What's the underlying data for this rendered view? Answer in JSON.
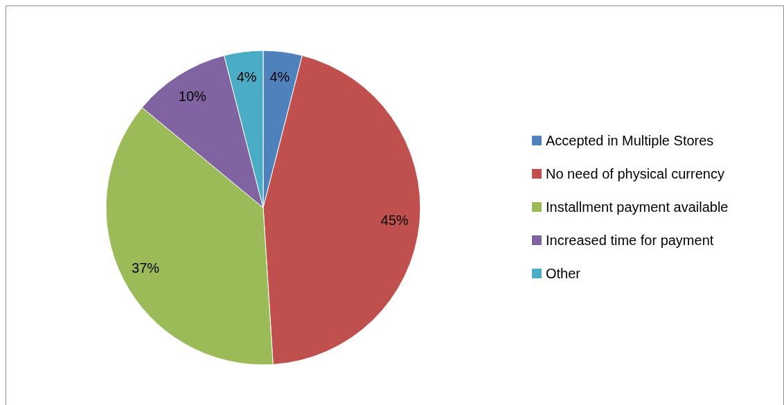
{
  "chart_data": {
    "type": "pie",
    "categories": [
      "Accepted in Multiple Stores",
      "No need of physical currency",
      "Installment payment available",
      "Increased time for payment",
      "Other"
    ],
    "values": [
      4,
      45,
      37,
      10,
      4
    ],
    "colors": [
      "#4f81bd",
      "#c0504d",
      "#9bbb59",
      "#8064a2",
      "#4bacc6"
    ],
    "value_labels": [
      "4%",
      "45%",
      "37%",
      "10%",
      "4%"
    ],
    "legend": "right"
  }
}
